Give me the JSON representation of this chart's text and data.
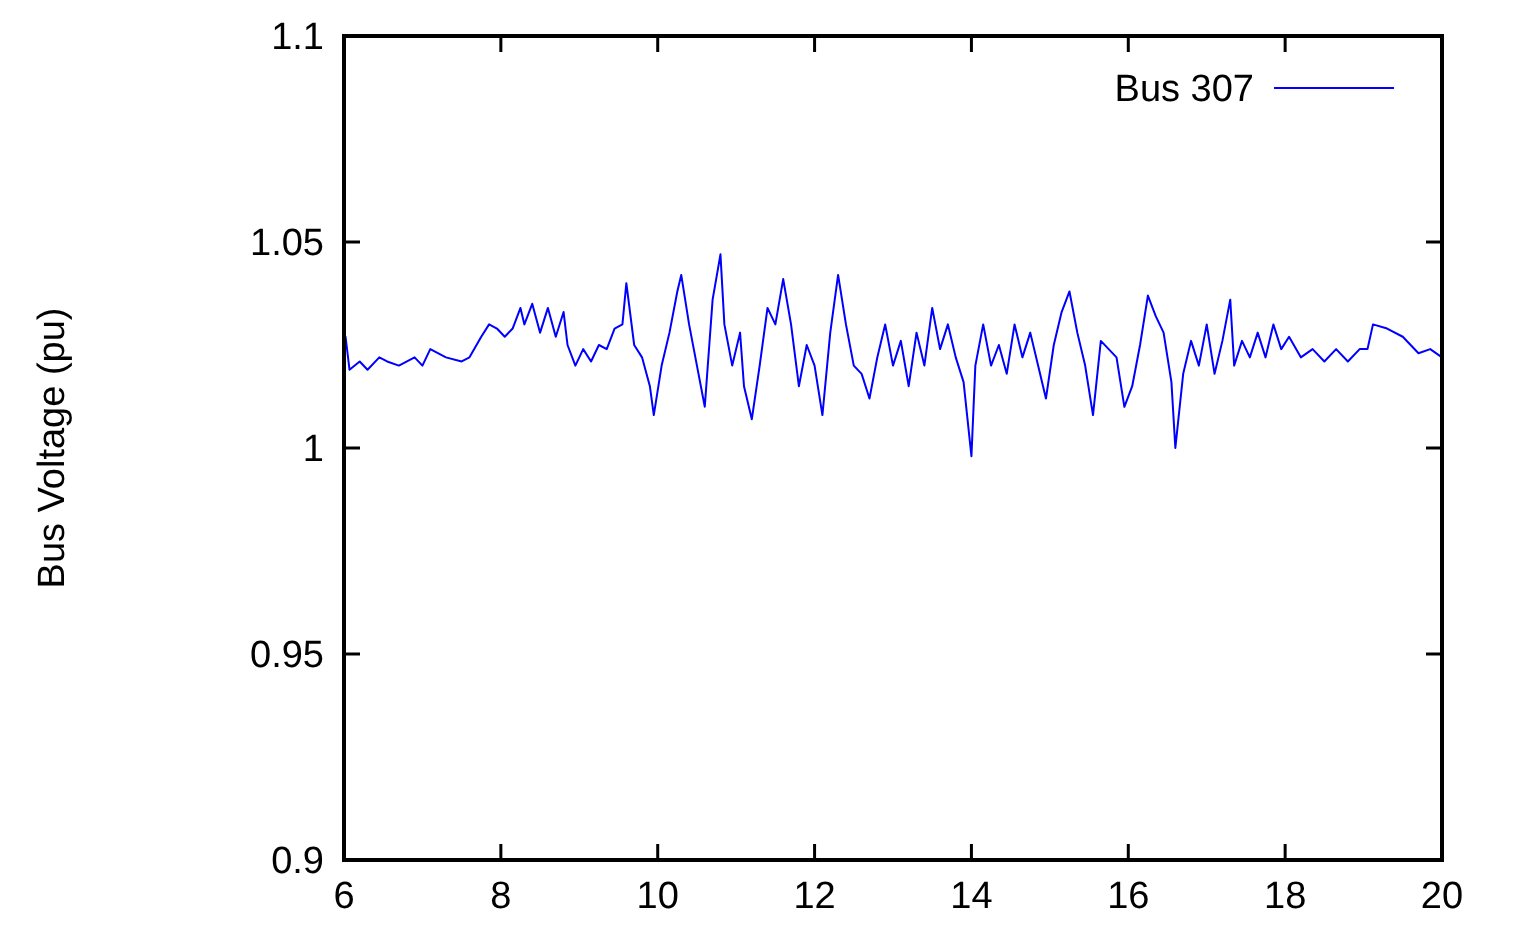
{
  "chart_data": {
    "type": "line",
    "ylabel": "Bus Voltage (pu)",
    "xlim": [
      6,
      20
    ],
    "xticks": [
      6,
      8,
      10,
      12,
      14,
      16,
      18,
      20
    ],
    "ylim": [
      0.9,
      1.1
    ],
    "yticks": [
      0.9,
      0.95,
      1,
      1.05,
      1.1
    ],
    "legend": "top right",
    "grid": false,
    "marker": "none",
    "line_style": "solid",
    "series": [
      {
        "name": "Bus 307",
        "color": "#0000ff",
        "x": [
          6.0,
          6.02,
          6.07,
          6.2,
          6.3,
          6.45,
          6.55,
          6.7,
          6.9,
          7.0,
          7.1,
          7.3,
          7.5,
          7.6,
          7.75,
          7.85,
          7.95,
          8.05,
          8.15,
          8.25,
          8.3,
          8.4,
          8.5,
          8.6,
          8.7,
          8.8,
          8.85,
          8.95,
          9.05,
          9.15,
          9.25,
          9.35,
          9.45,
          9.55,
          9.6,
          9.7,
          9.8,
          9.9,
          9.95,
          10.05,
          10.15,
          10.25,
          10.3,
          10.4,
          10.5,
          10.6,
          10.7,
          10.8,
          10.85,
          10.95,
          11.05,
          11.1,
          11.2,
          11.3,
          11.4,
          11.5,
          11.6,
          11.7,
          11.8,
          11.9,
          12.0,
          12.1,
          12.2,
          12.3,
          12.4,
          12.5,
          12.6,
          12.7,
          12.8,
          12.9,
          13.0,
          13.1,
          13.2,
          13.3,
          13.4,
          13.5,
          13.6,
          13.7,
          13.8,
          13.9,
          14.0,
          14.05,
          14.15,
          14.25,
          14.35,
          14.45,
          14.55,
          14.65,
          14.75,
          14.85,
          14.95,
          15.05,
          15.15,
          15.25,
          15.35,
          15.45,
          15.55,
          15.65,
          15.75,
          15.85,
          15.95,
          16.05,
          16.15,
          16.25,
          16.35,
          16.45,
          16.55,
          16.6,
          16.7,
          16.8,
          16.9,
          17.0,
          17.1,
          17.2,
          17.3,
          17.35,
          17.45,
          17.55,
          17.65,
          17.75,
          17.85,
          17.95,
          18.05,
          18.2,
          18.35,
          18.5,
          18.65,
          18.8,
          18.95,
          19.05,
          19.12,
          19.3,
          19.5,
          19.7,
          19.85,
          20.0
        ],
        "values": [
          1.022,
          1.027,
          1.019,
          1.021,
          1.019,
          1.022,
          1.021,
          1.02,
          1.022,
          1.02,
          1.024,
          1.022,
          1.021,
          1.022,
          1.027,
          1.03,
          1.029,
          1.027,
          1.029,
          1.034,
          1.03,
          1.035,
          1.028,
          1.034,
          1.027,
          1.033,
          1.025,
          1.02,
          1.024,
          1.021,
          1.025,
          1.024,
          1.029,
          1.03,
          1.04,
          1.025,
          1.022,
          1.015,
          1.008,
          1.02,
          1.028,
          1.038,
          1.042,
          1.03,
          1.02,
          1.01,
          1.036,
          1.047,
          1.03,
          1.02,
          1.028,
          1.015,
          1.007,
          1.02,
          1.034,
          1.03,
          1.041,
          1.03,
          1.015,
          1.025,
          1.02,
          1.008,
          1.028,
          1.042,
          1.03,
          1.02,
          1.018,
          1.012,
          1.022,
          1.03,
          1.02,
          1.026,
          1.015,
          1.028,
          1.02,
          1.034,
          1.024,
          1.03,
          1.022,
          1.016,
          0.998,
          1.02,
          1.03,
          1.02,
          1.025,
          1.018,
          1.03,
          1.022,
          1.028,
          1.02,
          1.012,
          1.025,
          1.033,
          1.038,
          1.028,
          1.02,
          1.008,
          1.026,
          1.024,
          1.022,
          1.01,
          1.015,
          1.025,
          1.037,
          1.032,
          1.028,
          1.016,
          1.0,
          1.018,
          1.026,
          1.02,
          1.03,
          1.018,
          1.026,
          1.036,
          1.02,
          1.026,
          1.022,
          1.028,
          1.022,
          1.03,
          1.024,
          1.027,
          1.022,
          1.024,
          1.021,
          1.024,
          1.021,
          1.024,
          1.024,
          1.03,
          1.029,
          1.027,
          1.023,
          1.024,
          1.022
        ]
      }
    ]
  }
}
